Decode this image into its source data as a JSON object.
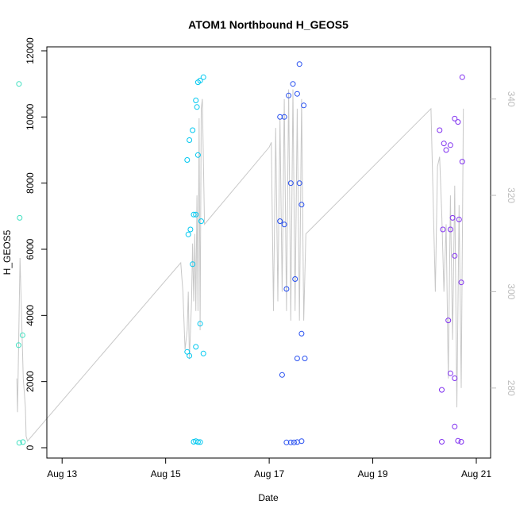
{
  "chart_data": {
    "type": "scatter",
    "title": "ATOM1 Northbound H_GEOS5",
    "xlabel": "Date",
    "ylabel": "H_GEOS5",
    "x_ticks": [
      "Aug 13",
      "Aug 15",
      "Aug 17",
      "Aug 19",
      "Aug 21"
    ],
    "xlim": [
      "2016-08-12 00:00",
      "2016-08-21 00:00"
    ],
    "ylim": [
      0,
      12000
    ],
    "y_ticks": [
      "0",
      "2000",
      "4000",
      "6000",
      "8000",
      "10000",
      "12000"
    ],
    "y2_ticks": [
      "280",
      "300",
      "320",
      "340"
    ],
    "y2lim": [
      262.7,
      347.6
    ],
    "grid": false,
    "legend": "none",
    "colors": {
      "axis": "#000000",
      "secondary_axis": "#bdbdbd",
      "line": "#c8c8c8",
      "flight1": "#40e0c0",
      "flight2": "#00c8f0",
      "flight3": "#2850f0",
      "flight4": "#8030f0"
    },
    "series": [
      {
        "type": "points",
        "color": "#40e0c0",
        "points": [
          [
            "2016-08-12 04:00",
            11000
          ],
          [
            "2016-08-12 04:20",
            6950
          ],
          [
            "2016-08-12 03:50",
            3100
          ],
          [
            "2016-08-12 05:40",
            3400
          ],
          [
            "2016-08-12 04:10",
            150
          ],
          [
            "2016-08-12 05:50",
            170
          ]
        ]
      },
      {
        "type": "points",
        "color": "#00c8f0",
        "points": [
          [
            "2016-08-15 17:30",
            11200
          ],
          [
            "2016-08-15 16:00",
            11100
          ],
          [
            "2016-08-15 15:00",
            11050
          ],
          [
            "2016-08-15 14:00",
            10500
          ],
          [
            "2016-08-15 14:30",
            10300
          ],
          [
            "2016-08-15 12:30",
            9600
          ],
          [
            "2016-08-15 11:00",
            9300
          ],
          [
            "2016-08-15 15:00",
            8850
          ],
          [
            "2016-08-15 10:00",
            8700
          ],
          [
            "2016-08-15 13:00",
            7050
          ],
          [
            "2016-08-15 14:00",
            7050
          ],
          [
            "2016-08-15 16:30",
            6850
          ],
          [
            "2016-08-15 11:30",
            6600
          ],
          [
            "2016-08-15 10:30",
            6450
          ],
          [
            "2016-08-15 12:30",
            5550
          ],
          [
            "2016-08-15 16:00",
            3750
          ],
          [
            "2016-08-15 14:00",
            3050
          ],
          [
            "2016-08-15 10:00",
            2900
          ],
          [
            "2016-08-15 17:30",
            2850
          ],
          [
            "2016-08-15 11:00",
            2780
          ],
          [
            "2016-08-15 13:00",
            180
          ],
          [
            "2016-08-15 14:00",
            200
          ],
          [
            "2016-08-15 15:00",
            170
          ],
          [
            "2016-08-15 16:00",
            170
          ]
        ]
      },
      {
        "type": "points",
        "color": "#2850f0",
        "points": [
          [
            "2016-08-17 14:00",
            11600
          ],
          [
            "2016-08-17 11:00",
            11000
          ],
          [
            "2016-08-17 13:00",
            10700
          ],
          [
            "2016-08-17 09:00",
            10650
          ],
          [
            "2016-08-17 16:00",
            10350
          ],
          [
            "2016-08-17 05:00",
            10000
          ],
          [
            "2016-08-17 07:00",
            10000
          ],
          [
            "2016-08-17 10:00",
            8000
          ],
          [
            "2016-08-17 14:00",
            8000
          ],
          [
            "2016-08-17 15:00",
            7350
          ],
          [
            "2016-08-17 05:00",
            6850
          ],
          [
            "2016-08-17 07:00",
            6750
          ],
          [
            "2016-08-17 12:00",
            5100
          ],
          [
            "2016-08-17 08:00",
            4800
          ],
          [
            "2016-08-17 15:00",
            3450
          ],
          [
            "2016-08-17 13:00",
            2700
          ],
          [
            "2016-08-17 16:30",
            2700
          ],
          [
            "2016-08-17 06:00",
            2200
          ],
          [
            "2016-08-17 08:00",
            160
          ],
          [
            "2016-08-17 10:00",
            160
          ],
          [
            "2016-08-17 11:30",
            160
          ],
          [
            "2016-08-17 13:00",
            170
          ],
          [
            "2016-08-17 15:00",
            200
          ]
        ]
      },
      {
        "type": "points",
        "color": "#8030f0",
        "points": [
          [
            "2016-08-20 17:30",
            11200
          ],
          [
            "2016-08-20 14:00",
            9950
          ],
          [
            "2016-08-20 15:30",
            9850
          ],
          [
            "2016-08-20 07:00",
            9600
          ],
          [
            "2016-08-20 09:00",
            9200
          ],
          [
            "2016-08-20 12:00",
            9150
          ],
          [
            "2016-08-20 10:00",
            9000
          ],
          [
            "2016-08-20 17:30",
            8650
          ],
          [
            "2016-08-20 13:00",
            6950
          ],
          [
            "2016-08-20 16:00",
            6900
          ],
          [
            "2016-08-20 08:30",
            6600
          ],
          [
            "2016-08-20 12:00",
            6600
          ],
          [
            "2016-08-20 14:00",
            5800
          ],
          [
            "2016-08-20 17:00",
            5000
          ],
          [
            "2016-08-20 11:00",
            3850
          ],
          [
            "2016-08-20 12:00",
            2250
          ],
          [
            "2016-08-20 14:00",
            2100
          ],
          [
            "2016-08-20 08:00",
            1750
          ],
          [
            "2016-08-20 14:00",
            640
          ],
          [
            "2016-08-20 08:00",
            180
          ],
          [
            "2016-08-20 15:30",
            210
          ],
          [
            "2016-08-20 17:00",
            180
          ]
        ]
      },
      {
        "type": "line",
        "axis": "secondary",
        "color": "#c8c8c8",
        "points": [
          [
            "2016-08-12 03:00",
            282
          ],
          [
            "2016-08-12 03:20",
            275
          ],
          [
            "2016-08-12 04:30",
            307
          ],
          [
            "2016-08-12 06:00",
            282
          ],
          [
            "2016-08-12 07:00",
            276
          ],
          [
            "2016-08-12 07:20",
            270
          ],
          [
            "2016-08-12 08:00",
            269
          ],
          [
            "2016-08-15 07:00",
            306
          ],
          [
            "2016-08-15 08:00",
            300
          ],
          [
            "2016-08-15 09:00",
            288
          ],
          [
            "2016-08-15 10:00",
            292
          ],
          [
            "2016-08-15 10:30",
            300
          ],
          [
            "2016-08-15 11:00",
            286
          ],
          [
            "2016-08-15 12:00",
            298
          ],
          [
            "2016-08-15 12:30",
            310
          ],
          [
            "2016-08-15 13:00",
            298
          ],
          [
            "2016-08-15 13:30",
            312
          ],
          [
            "2016-08-15 14:00",
            296
          ],
          [
            "2016-08-15 14:30",
            320
          ],
          [
            "2016-08-15 15:00",
            296
          ],
          [
            "2016-08-15 15:30",
            336
          ],
          [
            "2016-08-15 16:00",
            292
          ],
          [
            "2016-08-15 16:30",
            338
          ],
          [
            "2016-08-15 17:00",
            340
          ],
          [
            "2016-08-15 18:00",
            314
          ],
          [
            "2016-08-17 00:00",
            330
          ],
          [
            "2016-08-17 01:00",
            331
          ],
          [
            "2016-08-17 02:00",
            296
          ],
          [
            "2016-08-17 03:00",
            334
          ],
          [
            "2016-08-17 04:00",
            298
          ],
          [
            "2016-08-17 05:00",
            336
          ],
          [
            "2016-08-17 06:00",
            300
          ],
          [
            "2016-08-17 07:00",
            340
          ],
          [
            "2016-08-17 08:00",
            296
          ],
          [
            "2016-08-17 09:00",
            342
          ],
          [
            "2016-08-17 10:00",
            294
          ],
          [
            "2016-08-17 11:00",
            342
          ],
          [
            "2016-08-17 12:00",
            296
          ],
          [
            "2016-08-17 13:00",
            338
          ],
          [
            "2016-08-17 14:00",
            294
          ],
          [
            "2016-08-17 15:00",
            340
          ],
          [
            "2016-08-17 16:00",
            294
          ],
          [
            "2016-08-17 17:00",
            312
          ],
          [
            "2016-08-20 03:00",
            338
          ],
          [
            "2016-08-20 05:00",
            300
          ],
          [
            "2016-08-20 06:00",
            326
          ],
          [
            "2016-08-20 07:00",
            328
          ],
          [
            "2016-08-20 08:00",
            316
          ],
          [
            "2016-08-20 09:00",
            300
          ],
          [
            "2016-08-20 10:00",
            314
          ],
          [
            "2016-08-20 11:00",
            282
          ],
          [
            "2016-08-20 12:00",
            320
          ],
          [
            "2016-08-20 13:00",
            290
          ],
          [
            "2016-08-20 14:00",
            322
          ],
          [
            "2016-08-20 15:00",
            276
          ],
          [
            "2016-08-20 16:00",
            318
          ],
          [
            "2016-08-20 17:00",
            280
          ],
          [
            "2016-08-20 18:00",
            338
          ]
        ]
      }
    ]
  }
}
